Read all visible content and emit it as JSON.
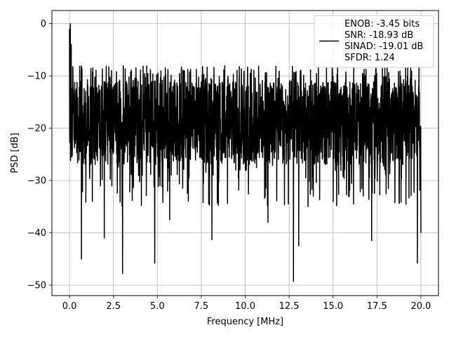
{
  "chart_data": {
    "type": "line",
    "xlabel": "Frequency [MHz]",
    "ylabel": "PSD [dB]",
    "xlim": [
      -1.0,
      21.0
    ],
    "ylim": [
      -52.0,
      2.5
    ],
    "xticks": [
      0.0,
      2.5,
      5.0,
      7.5,
      10.0,
      12.5,
      15.0,
      17.5,
      20.0
    ],
    "xtick_labels": [
      "0.0",
      "2.5",
      "5.0",
      "7.5",
      "10.0",
      "12.5",
      "15.0",
      "17.5",
      "20.0"
    ],
    "yticks": [
      0,
      -10,
      -20,
      -30,
      -40,
      -50
    ],
    "ytick_labels": [
      "0",
      "−10",
      "−20",
      "−30",
      "−40",
      "−50"
    ],
    "grid": true,
    "legend_position": "top-right",
    "series": [
      {
        "color": "#000000",
        "x_range": [
          0.0,
          20.0
        ],
        "num_points": 2000,
        "description": "noise-like PSD trace fluctuating mostly between about -10 and -30 dB, peak near 0 dB at the DC bin",
        "peaks": [
          {
            "x": 0.0,
            "y": -1.0
          },
          {
            "x": 0.05,
            "y": 0.0
          },
          {
            "x": 0.1,
            "y": -4.0
          }
        ],
        "dips": [
          {
            "x": 0.68,
            "y": -45.0
          },
          {
            "x": 1.3,
            "y": -34.0
          },
          {
            "x": 1.98,
            "y": -41.0
          },
          {
            "x": 3.02,
            "y": -47.8
          },
          {
            "x": 4.85,
            "y": -45.8
          },
          {
            "x": 5.7,
            "y": -37.5
          },
          {
            "x": 8.1,
            "y": -41.3
          },
          {
            "x": 11.3,
            "y": -38.0
          },
          {
            "x": 12.75,
            "y": -49.3
          },
          {
            "x": 13.05,
            "y": -42.5
          },
          {
            "x": 17.2,
            "y": -41.5
          },
          {
            "x": 19.8,
            "y": -45.8
          },
          {
            "x": 20.0,
            "y": -40.0
          }
        ]
      }
    ],
    "legend_lines": [
      "ENOB: -3.45 bits",
      "SNR: -18.93 dB",
      "SINAD: -19.01 dB",
      "SFDR: 1.24"
    ]
  }
}
